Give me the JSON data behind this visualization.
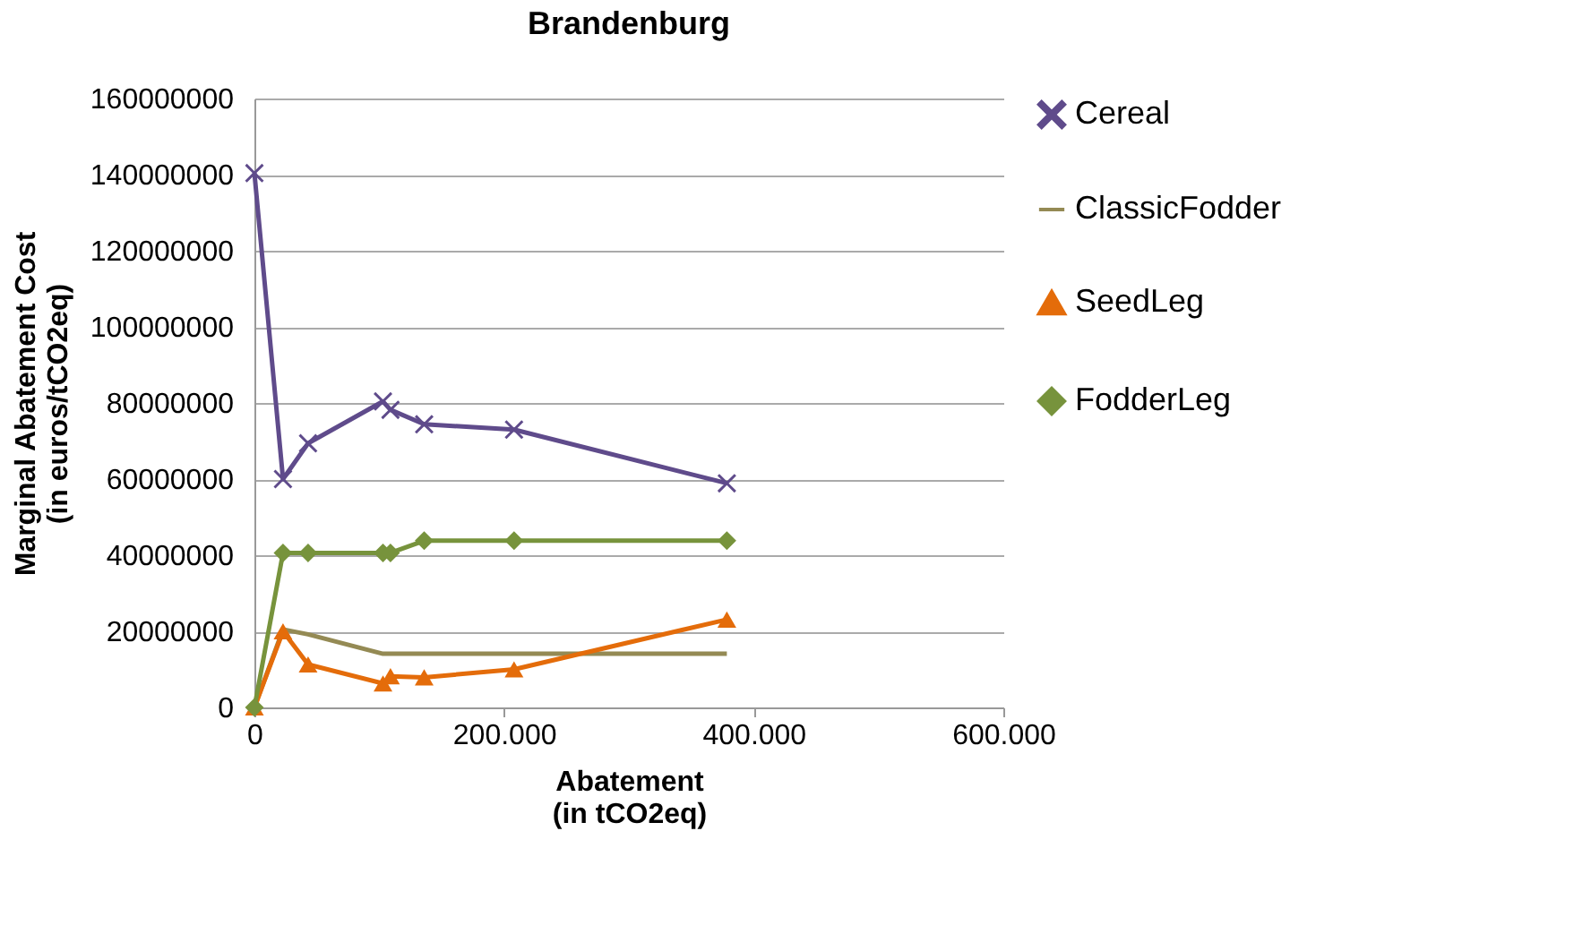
{
  "chart_data": {
    "type": "line",
    "title": "Brandenburg",
    "xlabel": "Abatement\n(in tCO2eq)",
    "ylabel": "Marginal Abatement Cost\n(in euros/tCO2eq)",
    "x": [
      0,
      22900,
      43000,
      103000,
      109000,
      136000,
      208000,
      378500
    ],
    "series": [
      {
        "name": "Cereal",
        "color": "#5f4b8b",
        "marker": "cross",
        "values": [
          140400000,
          60000000,
          69400000,
          80400000,
          78200000,
          74400000,
          73000000,
          58900000
        ]
      },
      {
        "name": "ClassicFodder",
        "color": "#948a54",
        "marker": "none",
        "values": [
          0,
          20500000,
          19200000,
          14100000,
          14100000,
          14100000,
          14100000,
          14100000
        ]
      },
      {
        "name": "SeedLeg",
        "color": "#e46c0a",
        "marker": "triangle",
        "values": [
          0,
          20000000,
          11300000,
          6300000,
          8200000,
          7900000,
          10000000,
          23100000
        ]
      },
      {
        "name": "FodderLeg",
        "color": "#77933c",
        "marker": "diamond",
        "values": [
          0,
          40600000,
          40600000,
          40600000,
          40600000,
          43800000,
          43800000,
          43800000
        ]
      }
    ],
    "xlim": [
      0,
      600000
    ],
    "xticks": [
      0,
      {
        "value": 200000,
        "label": "200.000"
      },
      {
        "value": 400000,
        "label": "400.000"
      },
      {
        "value": 600000,
        "label": "600.000"
      }
    ],
    "ylim": [
      0,
      160000000
    ],
    "yticks": [
      0,
      20000000,
      40000000,
      60000000,
      80000000,
      100000000,
      120000000,
      140000000,
      160000000
    ],
    "grid": "y",
    "legend": "right",
    "line_style": "solid"
  }
}
